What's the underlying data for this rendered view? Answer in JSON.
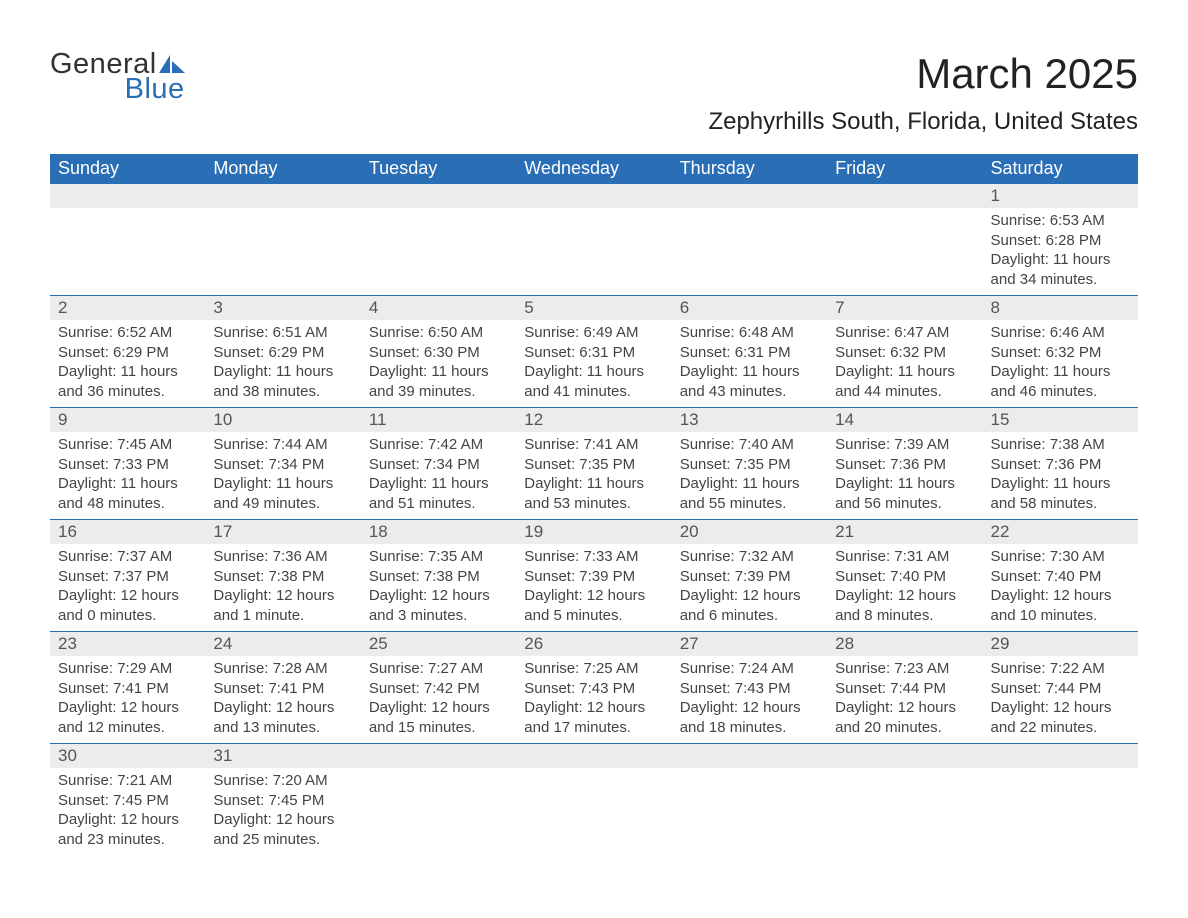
{
  "logo": {
    "text_general": "General",
    "text_blue": "Blue",
    "accent_color": "#2a6eb6"
  },
  "title": "March 2025",
  "location": "Zephyrhills South, Florida, United States",
  "colors": {
    "header_bg": "#2a6eb6",
    "header_text": "#ffffff",
    "daynum_bg": "#ececec",
    "row_border": "#2a6eb6",
    "body_text": "#444444"
  },
  "weekdays": [
    "Sunday",
    "Monday",
    "Tuesday",
    "Wednesday",
    "Thursday",
    "Friday",
    "Saturday"
  ],
  "first_day_index": 6,
  "days": [
    {
      "n": 1,
      "sunrise": "6:53 AM",
      "sunset": "6:28 PM",
      "daylight": "11 hours and 34 minutes."
    },
    {
      "n": 2,
      "sunrise": "6:52 AM",
      "sunset": "6:29 PM",
      "daylight": "11 hours and 36 minutes."
    },
    {
      "n": 3,
      "sunrise": "6:51 AM",
      "sunset": "6:29 PM",
      "daylight": "11 hours and 38 minutes."
    },
    {
      "n": 4,
      "sunrise": "6:50 AM",
      "sunset": "6:30 PM",
      "daylight": "11 hours and 39 minutes."
    },
    {
      "n": 5,
      "sunrise": "6:49 AM",
      "sunset": "6:31 PM",
      "daylight": "11 hours and 41 minutes."
    },
    {
      "n": 6,
      "sunrise": "6:48 AM",
      "sunset": "6:31 PM",
      "daylight": "11 hours and 43 minutes."
    },
    {
      "n": 7,
      "sunrise": "6:47 AM",
      "sunset": "6:32 PM",
      "daylight": "11 hours and 44 minutes."
    },
    {
      "n": 8,
      "sunrise": "6:46 AM",
      "sunset": "6:32 PM",
      "daylight": "11 hours and 46 minutes."
    },
    {
      "n": 9,
      "sunrise": "7:45 AM",
      "sunset": "7:33 PM",
      "daylight": "11 hours and 48 minutes."
    },
    {
      "n": 10,
      "sunrise": "7:44 AM",
      "sunset": "7:34 PM",
      "daylight": "11 hours and 49 minutes."
    },
    {
      "n": 11,
      "sunrise": "7:42 AM",
      "sunset": "7:34 PM",
      "daylight": "11 hours and 51 minutes."
    },
    {
      "n": 12,
      "sunrise": "7:41 AM",
      "sunset": "7:35 PM",
      "daylight": "11 hours and 53 minutes."
    },
    {
      "n": 13,
      "sunrise": "7:40 AM",
      "sunset": "7:35 PM",
      "daylight": "11 hours and 55 minutes."
    },
    {
      "n": 14,
      "sunrise": "7:39 AM",
      "sunset": "7:36 PM",
      "daylight": "11 hours and 56 minutes."
    },
    {
      "n": 15,
      "sunrise": "7:38 AM",
      "sunset": "7:36 PM",
      "daylight": "11 hours and 58 minutes."
    },
    {
      "n": 16,
      "sunrise": "7:37 AM",
      "sunset": "7:37 PM",
      "daylight": "12 hours and 0 minutes."
    },
    {
      "n": 17,
      "sunrise": "7:36 AM",
      "sunset": "7:38 PM",
      "daylight": "12 hours and 1 minute."
    },
    {
      "n": 18,
      "sunrise": "7:35 AM",
      "sunset": "7:38 PM",
      "daylight": "12 hours and 3 minutes."
    },
    {
      "n": 19,
      "sunrise": "7:33 AM",
      "sunset": "7:39 PM",
      "daylight": "12 hours and 5 minutes."
    },
    {
      "n": 20,
      "sunrise": "7:32 AM",
      "sunset": "7:39 PM",
      "daylight": "12 hours and 6 minutes."
    },
    {
      "n": 21,
      "sunrise": "7:31 AM",
      "sunset": "7:40 PM",
      "daylight": "12 hours and 8 minutes."
    },
    {
      "n": 22,
      "sunrise": "7:30 AM",
      "sunset": "7:40 PM",
      "daylight": "12 hours and 10 minutes."
    },
    {
      "n": 23,
      "sunrise": "7:29 AM",
      "sunset": "7:41 PM",
      "daylight": "12 hours and 12 minutes."
    },
    {
      "n": 24,
      "sunrise": "7:28 AM",
      "sunset": "7:41 PM",
      "daylight": "12 hours and 13 minutes."
    },
    {
      "n": 25,
      "sunrise": "7:27 AM",
      "sunset": "7:42 PM",
      "daylight": "12 hours and 15 minutes."
    },
    {
      "n": 26,
      "sunrise": "7:25 AM",
      "sunset": "7:43 PM",
      "daylight": "12 hours and 17 minutes."
    },
    {
      "n": 27,
      "sunrise": "7:24 AM",
      "sunset": "7:43 PM",
      "daylight": "12 hours and 18 minutes."
    },
    {
      "n": 28,
      "sunrise": "7:23 AM",
      "sunset": "7:44 PM",
      "daylight": "12 hours and 20 minutes."
    },
    {
      "n": 29,
      "sunrise": "7:22 AM",
      "sunset": "7:44 PM",
      "daylight": "12 hours and 22 minutes."
    },
    {
      "n": 30,
      "sunrise": "7:21 AM",
      "sunset": "7:45 PM",
      "daylight": "12 hours and 23 minutes."
    },
    {
      "n": 31,
      "sunrise": "7:20 AM",
      "sunset": "7:45 PM",
      "daylight": "12 hours and 25 minutes."
    }
  ],
  "labels": {
    "sunrise": "Sunrise: ",
    "sunset": "Sunset: ",
    "daylight": "Daylight: "
  }
}
